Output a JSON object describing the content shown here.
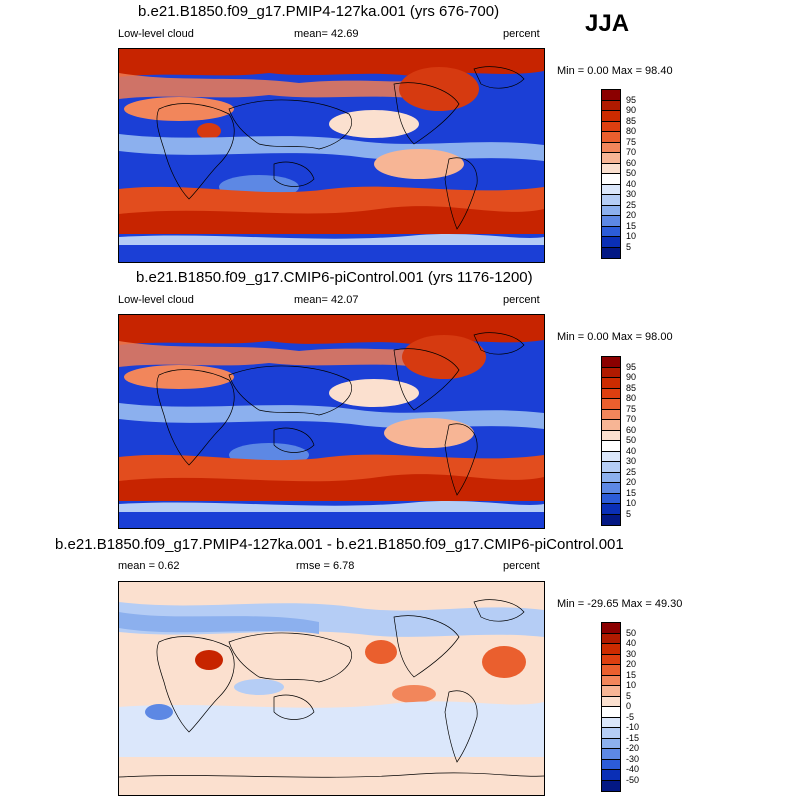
{
  "season": "JJA",
  "panels": [
    {
      "title": "b.e21.B1850.f09_g17.PMIP4-127ka.001 (yrs 676-700)",
      "left_label": "Low-level cloud",
      "center_label": "mean=  42.69",
      "units": "percent",
      "minmax": "Min =   0.00 Max =  98.40",
      "kind": "abs"
    },
    {
      "title": "b.e21.B1850.f09_g17.CMIP6-piControl.001 (yrs 1176-1200)",
      "left_label": "Low-level cloud",
      "center_label": "mean=  42.07",
      "units": "percent",
      "minmax": "Min =   0.00 Max =  98.00",
      "kind": "abs"
    },
    {
      "title": "b.e21.B1850.f09_g17.PMIP4-127ka.001 - b.e21.B1850.f09_g17.CMIP6-piControl.001",
      "left_label": "mean =   0.62",
      "center_label": "rmse =   6.78",
      "units": "percent",
      "minmax": "Min = -29.65 Max =  49.30",
      "kind": "diff"
    }
  ],
  "colorbar_abs": {
    "labels": [
      "95",
      "90",
      "85",
      "80",
      "75",
      "70",
      "60",
      "50",
      "40",
      "30",
      "25",
      "20",
      "15",
      "10",
      "5"
    ],
    "colors": [
      "#8b0000",
      "#b01a00",
      "#cc2b00",
      "#dd3f10",
      "#ea5f2e",
      "#f2865b",
      "#f7b595",
      "#fbe0cf",
      "#ffffff",
      "#dbe7fb",
      "#b5cdf5",
      "#8cb0ee",
      "#5d88e4",
      "#2c5cd8",
      "#0a2fb6",
      "#031884"
    ]
  },
  "colorbar_diff": {
    "labels": [
      "50",
      "40",
      "30",
      "20",
      "15",
      "10",
      "5",
      "0",
      "-5",
      "-10",
      "-15",
      "-20",
      "-30",
      "-40",
      "-50"
    ],
    "colors": [
      "#8b0000",
      "#b01a00",
      "#cc2b00",
      "#dd3f10",
      "#ea5f2e",
      "#f2865b",
      "#f7b595",
      "#fbe0cf",
      "#ffffff",
      "#dbe7fb",
      "#b5cdf5",
      "#8cb0ee",
      "#5d88e4",
      "#2c5cd8",
      "#0a2fb6",
      "#031884"
    ]
  }
}
